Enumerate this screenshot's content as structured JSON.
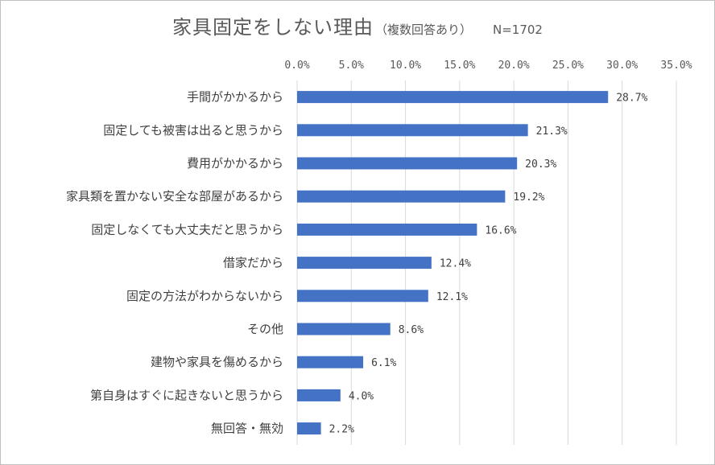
{
  "chart_data": {
    "type": "bar",
    "orientation": "horizontal",
    "title": "家具固定をしない理由",
    "subtitle": "（複数回答あり）",
    "n_label": "N=1702",
    "xlabel": "",
    "ylabel": "",
    "xlim": [
      0,
      35
    ],
    "ticks": [
      0,
      5,
      10,
      15,
      20,
      25,
      30,
      35
    ],
    "tick_labels": [
      "0.0%",
      "5.0%",
      "10.0%",
      "15.0%",
      "20.0%",
      "25.0%",
      "30.0%",
      "35.0%"
    ],
    "axis_position": "top",
    "grid": true,
    "legend": "none",
    "bar_color": "#4472c4",
    "categories": [
      "手間がかかるから",
      "固定しても被害は出ると思うから",
      "費用がかかるから",
      "家具類を置かない安全な部屋があるから",
      "固定しなくても大丈夫だと思うから",
      "借家だから",
      "固定の方法がわからないから",
      "その他",
      "建物や家具を傷めるから",
      "第自身はすぐに起きないと思うから",
      "無回答・無効"
    ],
    "values": [
      28.7,
      21.3,
      20.3,
      19.2,
      16.6,
      12.4,
      12.1,
      8.6,
      6.1,
      4.0,
      2.2
    ],
    "data_labels": [
      "28.7%",
      "21.3%",
      "20.3%",
      "19.2%",
      "16.6%",
      "12.4%",
      "12.1%",
      "8.6%",
      "6.1%",
      "4.0%",
      "2.2%"
    ]
  }
}
